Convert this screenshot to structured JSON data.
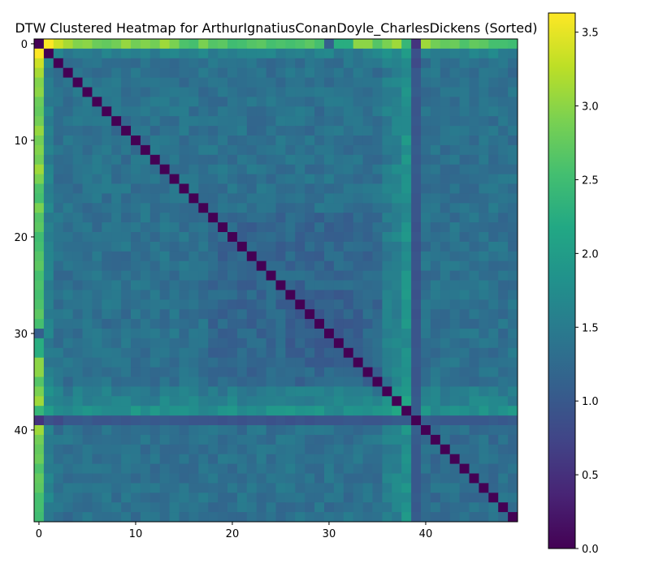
{
  "chart_data": {
    "type": "heatmap",
    "title": "DTW Clustered Heatmap for ArthurIgnatiusConanDoyle_CharlesDickens (Sorted)",
    "xlabel": "",
    "ylabel": "",
    "n": 50,
    "x_ticks": [
      0,
      10,
      20,
      30,
      40
    ],
    "y_ticks": [
      0,
      10,
      20,
      30,
      40
    ],
    "colormap": "viridis",
    "colorbar": {
      "range": [
        0.0,
        3.63
      ],
      "ticks": [
        0.0,
        0.5,
        1.0,
        1.5,
        2.0,
        2.5,
        3.0,
        3.5
      ]
    },
    "diagonal_value": 0.0,
    "first_column_values": [
      0.0,
      3.63,
      3.35,
      3.15,
      2.95,
      3.0,
      2.8,
      2.75,
      2.85,
      3.05,
      2.85,
      2.95,
      2.85,
      3.1,
      2.9,
      2.6,
      2.55,
      2.9,
      2.65,
      2.7,
      2.5,
      2.55,
      2.65,
      2.7,
      2.55,
      2.6,
      2.55,
      2.6,
      2.7,
      2.55,
      1.1,
      2.25,
      2.25,
      3.0,
      3.0,
      2.65,
      2.9,
      3.1,
      2.4,
      0.55,
      3.1,
      2.85,
      2.75,
      2.8,
      2.6,
      2.75,
      2.7,
      2.55,
      2.55,
      2.5
    ],
    "row_39_values": [
      0.55,
      0.9,
      0.8,
      1.0,
      1.0,
      1.05,
      0.95,
      0.95,
      1.0,
      0.95,
      1.0,
      1.05,
      1.0,
      1.05,
      1.0,
      1.0,
      0.95,
      0.95,
      0.95,
      0.9,
      0.95,
      0.9,
      0.95,
      0.95,
      0.9,
      0.95,
      0.9,
      0.95,
      0.9,
      0.95,
      0.95,
      0.95,
      1.0,
      1.0,
      0.95,
      0.95,
      1.0,
      1.05,
      1.05,
      0.0,
      1.1,
      1.05,
      1.0,
      1.0,
      1.0,
      1.0,
      1.0,
      1.05,
      1.0,
      1.05
    ]
  }
}
